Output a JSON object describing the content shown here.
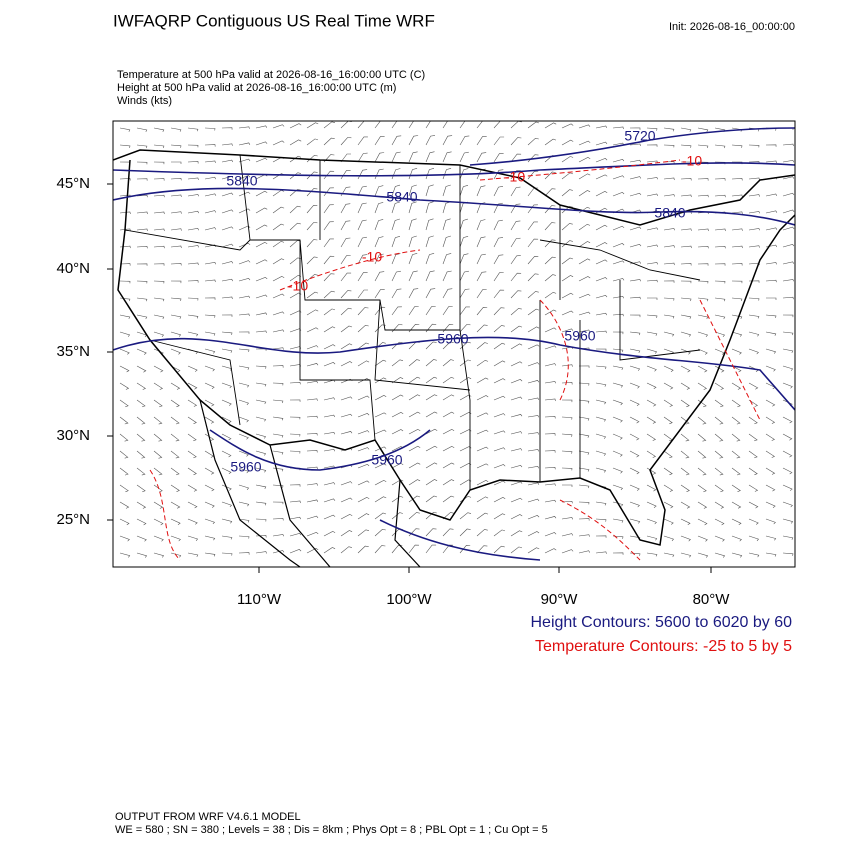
{
  "header": {
    "title": "IWFAQRP Contiguous US Real Time WRF",
    "init": "Init: 2026-08-16_00:00:00"
  },
  "fields": [
    "Temperature at 500 hPa valid at 2026-08-16_16:00:00 UTC   (C)",
    "Height at 500 hPa valid at 2026-08-16_16:00:00 UTC   (m)",
    "Winds   (kts)"
  ],
  "map": {
    "lat_labels": [
      "45°N",
      "40°N",
      "35°N",
      "30°N",
      "25°N"
    ],
    "lon_labels": [
      "110°W",
      "100°W",
      "90°W",
      "80°W"
    ],
    "height_contour_labels": [
      "5720",
      "5840",
      "5840",
      "5840",
      "5960",
      "5960",
      "5960",
      "5960"
    ],
    "temperature_contour_labels": [
      "-10",
      "-10",
      "-10",
      "-10"
    ]
  },
  "legend": [
    "Height Contours: 5600 to 6020 by 60",
    "Temperature Contours: -25 to 5 by 5"
  ],
  "footer": [
    "OUTPUT FROM WRF V4.6.1 MODEL",
    "WE = 580 ; SN = 380 ; Levels = 38 ; Dis = 8km ; Phys Opt = 8 ; PBL Opt = 1 ; Cu Opt = 5"
  ]
}
